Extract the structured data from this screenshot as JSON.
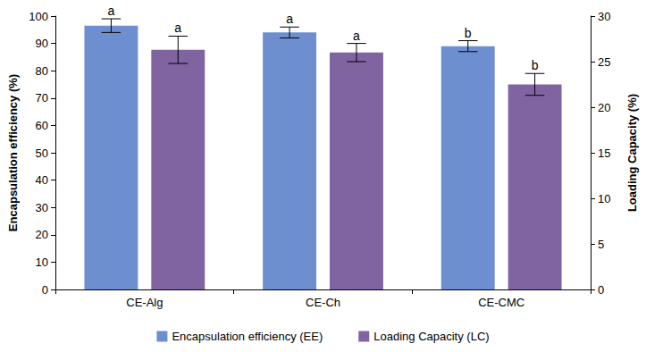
{
  "chart_data": {
    "type": "bar",
    "categories": [
      "CE-Alg",
      "CE-Ch",
      "CE-CMC"
    ],
    "series": [
      {
        "name": "Encapsulation efficiency (EE)",
        "color": "#6e8fcf",
        "values": [
          96.5,
          94,
          89
        ],
        "error": [
          2.5,
          2,
          2
        ],
        "letters": [
          "a",
          "a",
          "b"
        ]
      },
      {
        "name": "Loading Capacity (LC)",
        "color": "#8064a2",
        "values": [
          26.3,
          26,
          22.5
        ],
        "error": [
          1.5,
          1,
          1.2
        ],
        "letters": [
          "a",
          "a",
          "b"
        ],
        "axis": "y2"
      }
    ],
    "ylabel": "Encapsulation efficiency (%)",
    "y2label": "Loading Capacity (%)",
    "ylim": [
      0,
      100
    ],
    "yticks": [
      0,
      10,
      20,
      30,
      40,
      50,
      60,
      70,
      80,
      90,
      100
    ],
    "y2lim": [
      0,
      30
    ],
    "y2ticks": [
      0,
      5,
      10,
      15,
      20,
      25,
      30
    ],
    "grid": false,
    "legend": "bottom"
  }
}
